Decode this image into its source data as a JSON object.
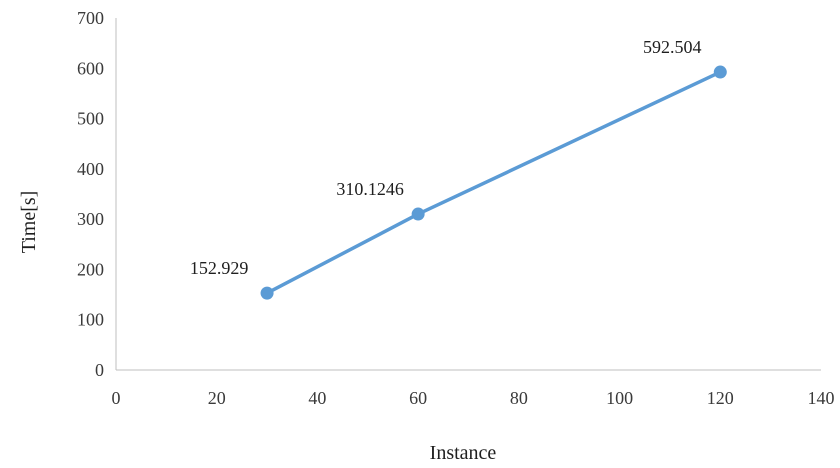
{
  "chart_data": {
    "type": "scatter",
    "title": "",
    "xlabel": "Instance",
    "ylabel": "Time[s]",
    "xlim": [
      0,
      140
    ],
    "ylim": [
      0,
      700
    ],
    "xticks": [
      0,
      20,
      40,
      60,
      80,
      100,
      120,
      140
    ],
    "yticks": [
      0,
      100,
      200,
      300,
      400,
      500,
      600,
      700
    ],
    "grid": false,
    "series": [
      {
        "x": [
          30,
          60,
          120
        ],
        "y": [
          152.929,
          310.1246,
          592.504
        ],
        "labels": [
          "152.929",
          "310.1246",
          "592.504"
        ],
        "color": "#5b9bd5",
        "mode": "lines+markers"
      }
    ]
  }
}
